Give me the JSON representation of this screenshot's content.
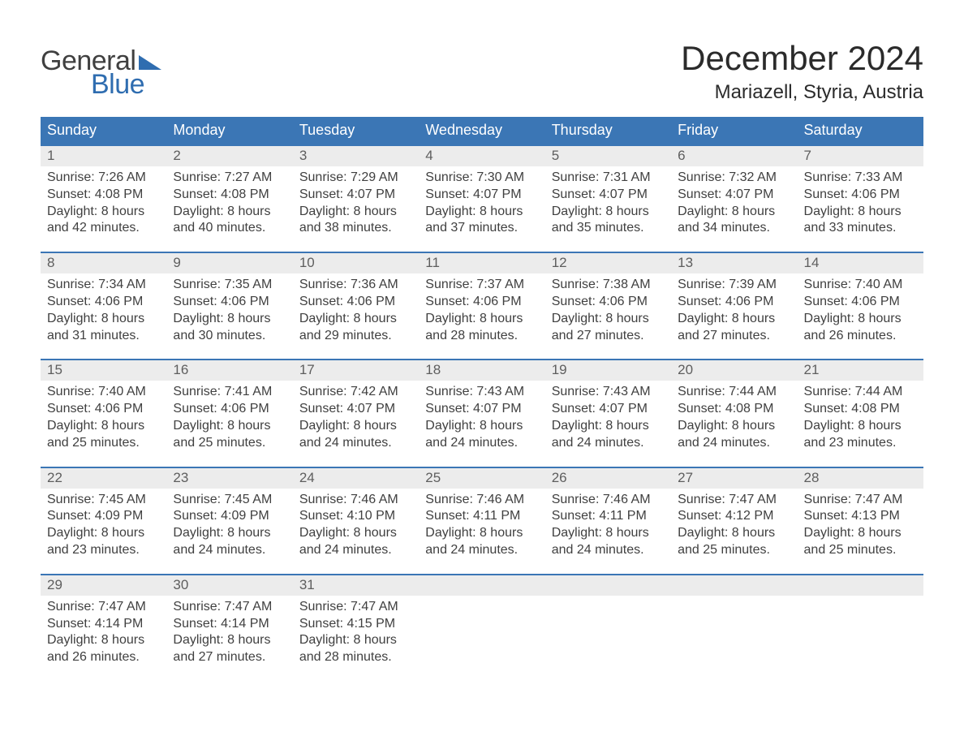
{
  "logo": {
    "text_top": "General",
    "text_bottom": "Blue",
    "accent_color": "#2f6db0"
  },
  "title": "December 2024",
  "location": "Mariazell, Styria, Austria",
  "colors": {
    "header_bg": "#3b76b5",
    "header_text": "#ffffff",
    "daynum_bg": "#ececec",
    "daynum_border": "#3b76b5",
    "body_text": "#404040",
    "daynum_text": "#5e5e5e",
    "page_bg": "#ffffff"
  },
  "days_of_week": [
    "Sunday",
    "Monday",
    "Tuesday",
    "Wednesday",
    "Thursday",
    "Friday",
    "Saturday"
  ],
  "labels": {
    "sunrise": "Sunrise:",
    "sunset": "Sunset:",
    "daylight": "Daylight:"
  },
  "weeks": [
    [
      {
        "day": "1",
        "sunrise": "7:26 AM",
        "sunset": "4:08 PM",
        "daylight1": "8 hours",
        "daylight2": "and 42 minutes."
      },
      {
        "day": "2",
        "sunrise": "7:27 AM",
        "sunset": "4:08 PM",
        "daylight1": "8 hours",
        "daylight2": "and 40 minutes."
      },
      {
        "day": "3",
        "sunrise": "7:29 AM",
        "sunset": "4:07 PM",
        "daylight1": "8 hours",
        "daylight2": "and 38 minutes."
      },
      {
        "day": "4",
        "sunrise": "7:30 AM",
        "sunset": "4:07 PM",
        "daylight1": "8 hours",
        "daylight2": "and 37 minutes."
      },
      {
        "day": "5",
        "sunrise": "7:31 AM",
        "sunset": "4:07 PM",
        "daylight1": "8 hours",
        "daylight2": "and 35 minutes."
      },
      {
        "day": "6",
        "sunrise": "7:32 AM",
        "sunset": "4:07 PM",
        "daylight1": "8 hours",
        "daylight2": "and 34 minutes."
      },
      {
        "day": "7",
        "sunrise": "7:33 AM",
        "sunset": "4:06 PM",
        "daylight1": "8 hours",
        "daylight2": "and 33 minutes."
      }
    ],
    [
      {
        "day": "8",
        "sunrise": "7:34 AM",
        "sunset": "4:06 PM",
        "daylight1": "8 hours",
        "daylight2": "and 31 minutes."
      },
      {
        "day": "9",
        "sunrise": "7:35 AM",
        "sunset": "4:06 PM",
        "daylight1": "8 hours",
        "daylight2": "and 30 minutes."
      },
      {
        "day": "10",
        "sunrise": "7:36 AM",
        "sunset": "4:06 PM",
        "daylight1": "8 hours",
        "daylight2": "and 29 minutes."
      },
      {
        "day": "11",
        "sunrise": "7:37 AM",
        "sunset": "4:06 PM",
        "daylight1": "8 hours",
        "daylight2": "and 28 minutes."
      },
      {
        "day": "12",
        "sunrise": "7:38 AM",
        "sunset": "4:06 PM",
        "daylight1": "8 hours",
        "daylight2": "and 27 minutes."
      },
      {
        "day": "13",
        "sunrise": "7:39 AM",
        "sunset": "4:06 PM",
        "daylight1": "8 hours",
        "daylight2": "and 27 minutes."
      },
      {
        "day": "14",
        "sunrise": "7:40 AM",
        "sunset": "4:06 PM",
        "daylight1": "8 hours",
        "daylight2": "and 26 minutes."
      }
    ],
    [
      {
        "day": "15",
        "sunrise": "7:40 AM",
        "sunset": "4:06 PM",
        "daylight1": "8 hours",
        "daylight2": "and 25 minutes."
      },
      {
        "day": "16",
        "sunrise": "7:41 AM",
        "sunset": "4:06 PM",
        "daylight1": "8 hours",
        "daylight2": "and 25 minutes."
      },
      {
        "day": "17",
        "sunrise": "7:42 AM",
        "sunset": "4:07 PM",
        "daylight1": "8 hours",
        "daylight2": "and 24 minutes."
      },
      {
        "day": "18",
        "sunrise": "7:43 AM",
        "sunset": "4:07 PM",
        "daylight1": "8 hours",
        "daylight2": "and 24 minutes."
      },
      {
        "day": "19",
        "sunrise": "7:43 AM",
        "sunset": "4:07 PM",
        "daylight1": "8 hours",
        "daylight2": "and 24 minutes."
      },
      {
        "day": "20",
        "sunrise": "7:44 AM",
        "sunset": "4:08 PM",
        "daylight1": "8 hours",
        "daylight2": "and 24 minutes."
      },
      {
        "day": "21",
        "sunrise": "7:44 AM",
        "sunset": "4:08 PM",
        "daylight1": "8 hours",
        "daylight2": "and 23 minutes."
      }
    ],
    [
      {
        "day": "22",
        "sunrise": "7:45 AM",
        "sunset": "4:09 PM",
        "daylight1": "8 hours",
        "daylight2": "and 23 minutes."
      },
      {
        "day": "23",
        "sunrise": "7:45 AM",
        "sunset": "4:09 PM",
        "daylight1": "8 hours",
        "daylight2": "and 24 minutes."
      },
      {
        "day": "24",
        "sunrise": "7:46 AM",
        "sunset": "4:10 PM",
        "daylight1": "8 hours",
        "daylight2": "and 24 minutes."
      },
      {
        "day": "25",
        "sunrise": "7:46 AM",
        "sunset": "4:11 PM",
        "daylight1": "8 hours",
        "daylight2": "and 24 minutes."
      },
      {
        "day": "26",
        "sunrise": "7:46 AM",
        "sunset": "4:11 PM",
        "daylight1": "8 hours",
        "daylight2": "and 24 minutes."
      },
      {
        "day": "27",
        "sunrise": "7:47 AM",
        "sunset": "4:12 PM",
        "daylight1": "8 hours",
        "daylight2": "and 25 minutes."
      },
      {
        "day": "28",
        "sunrise": "7:47 AM",
        "sunset": "4:13 PM",
        "daylight1": "8 hours",
        "daylight2": "and 25 minutes."
      }
    ],
    [
      {
        "day": "29",
        "sunrise": "7:47 AM",
        "sunset": "4:14 PM",
        "daylight1": "8 hours",
        "daylight2": "and 26 minutes."
      },
      {
        "day": "30",
        "sunrise": "7:47 AM",
        "sunset": "4:14 PM",
        "daylight1": "8 hours",
        "daylight2": "and 27 minutes."
      },
      {
        "day": "31",
        "sunrise": "7:47 AM",
        "sunset": "4:15 PM",
        "daylight1": "8 hours",
        "daylight2": "and 28 minutes."
      },
      null,
      null,
      null,
      null
    ]
  ]
}
